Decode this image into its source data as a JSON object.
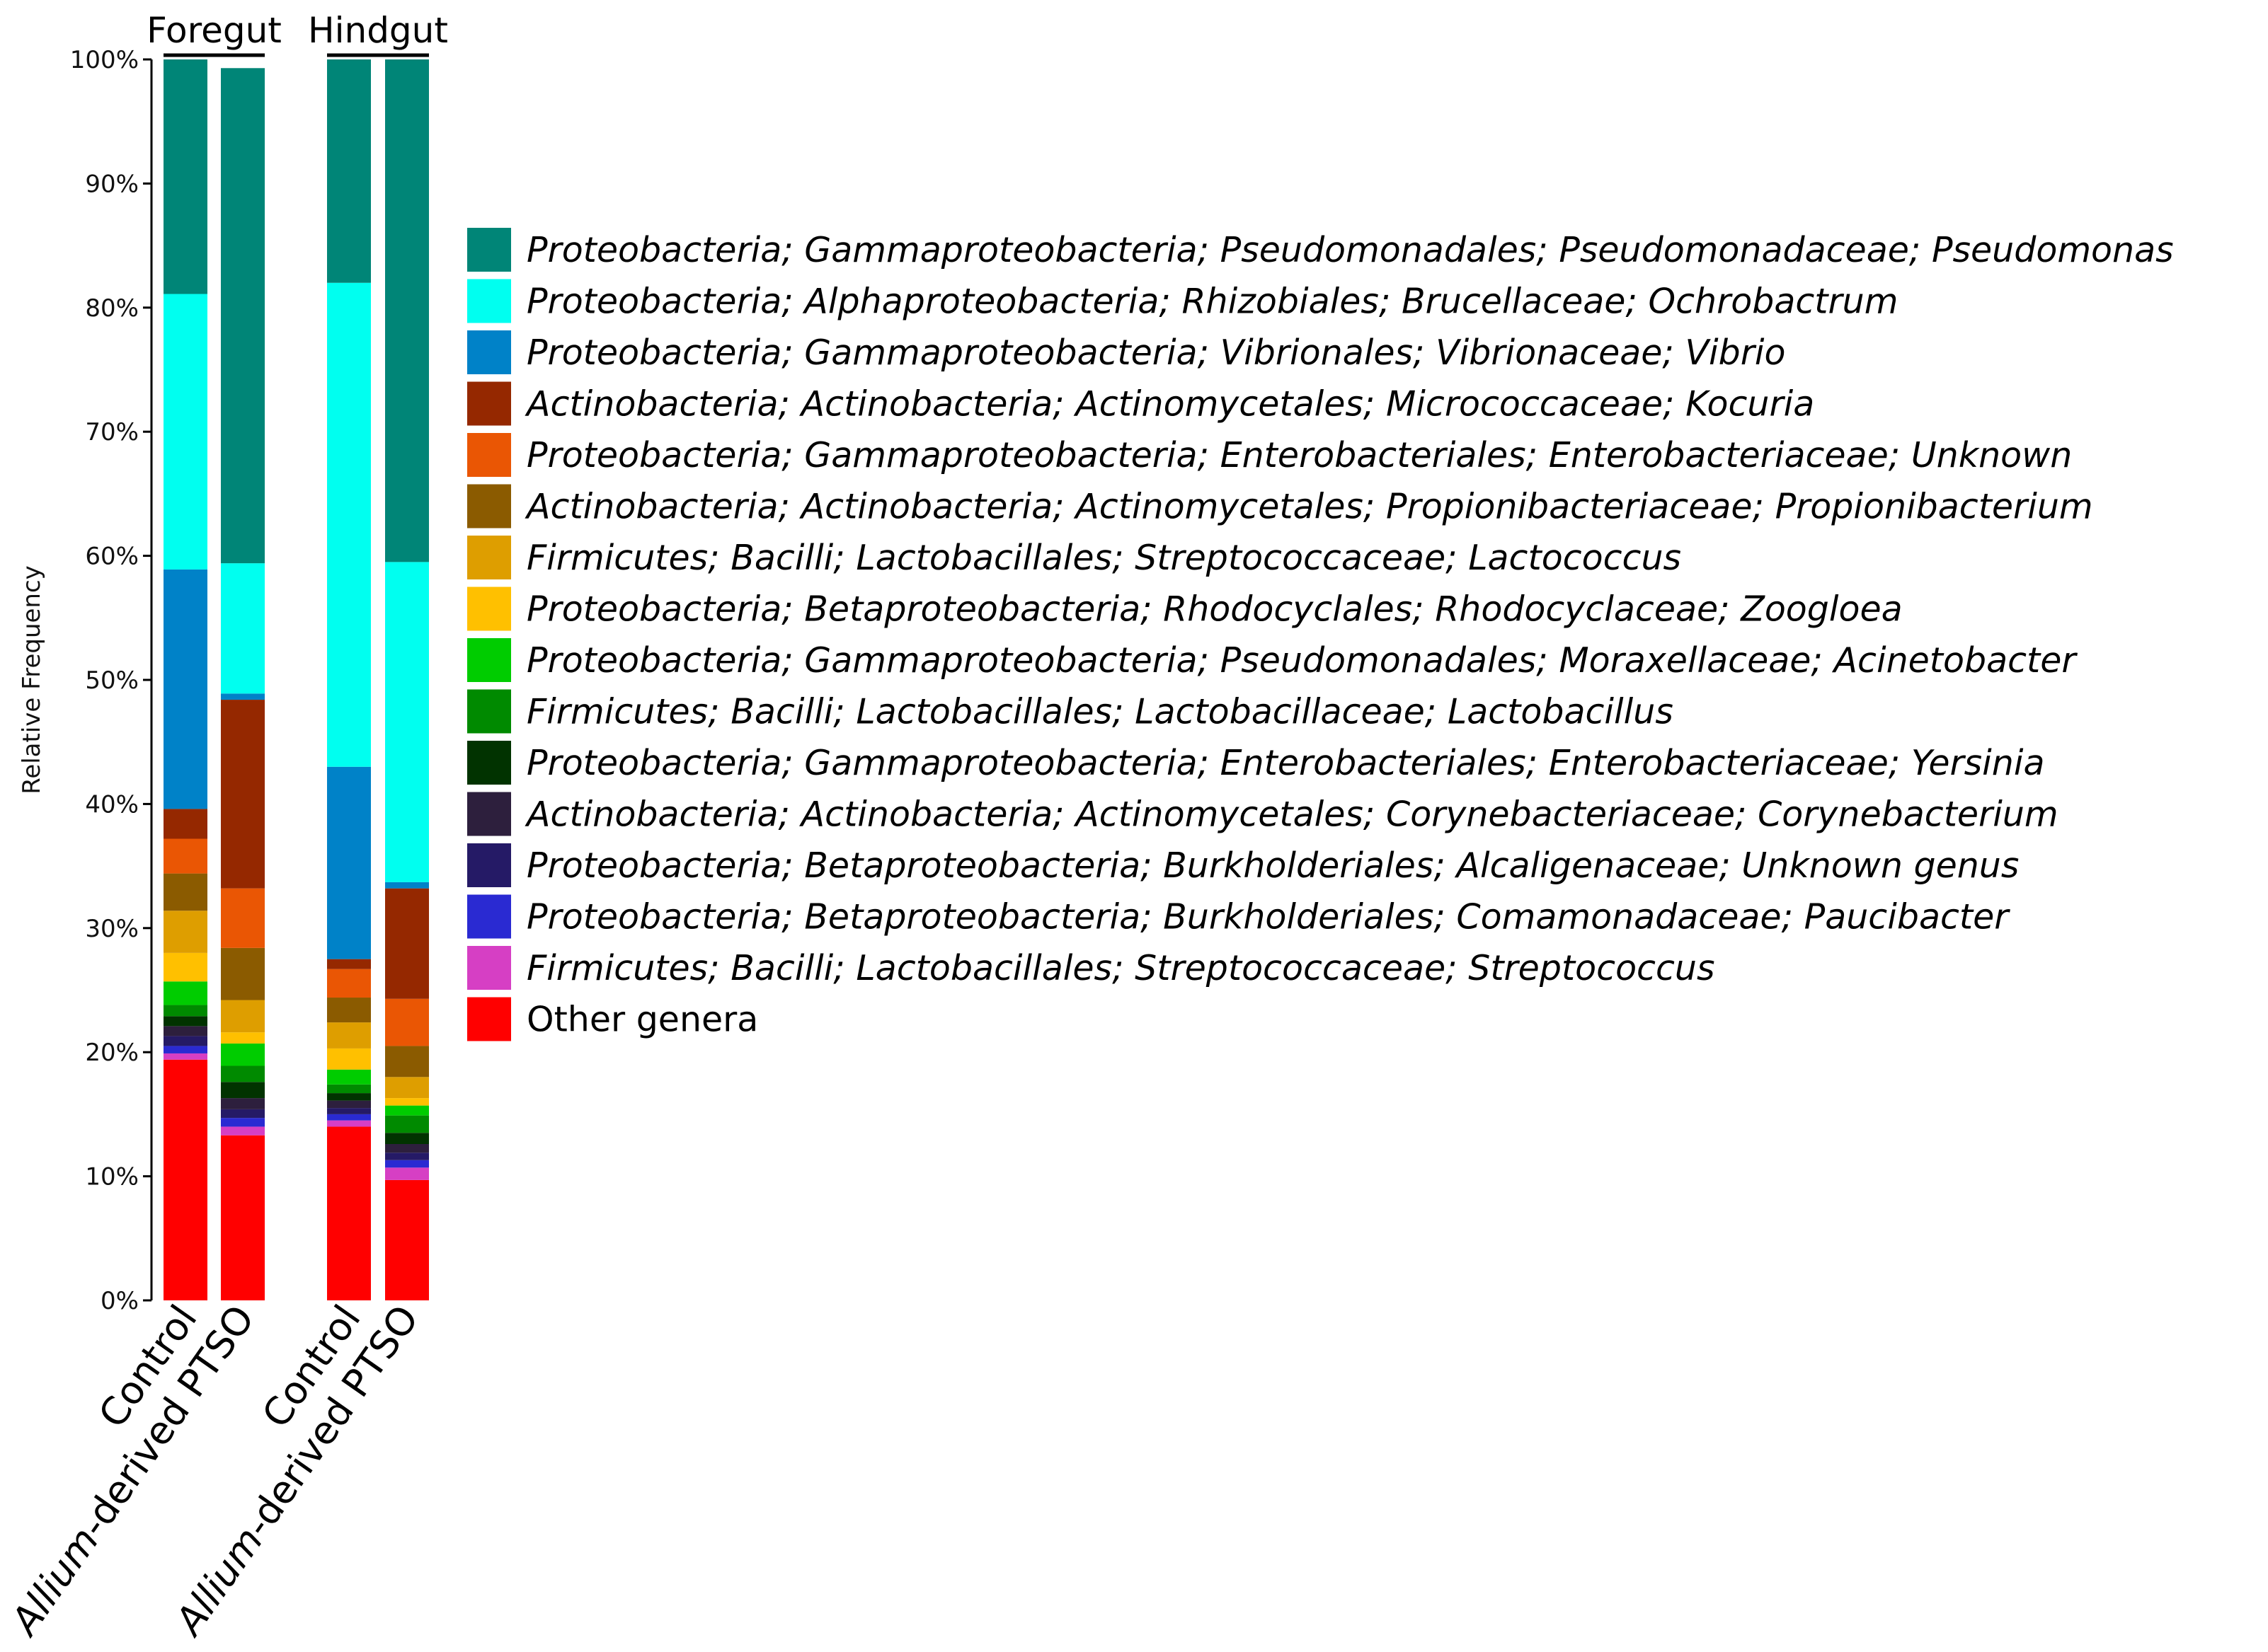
{
  "chart_data": {
    "type": "bar",
    "stacked": true,
    "ylabel": "Relative Frequency",
    "ylim": [
      0,
      100
    ],
    "yticks": [
      "0%",
      "10%",
      "20%",
      "30%",
      "40%",
      "50%",
      "60%",
      "70%",
      "80%",
      "90%",
      "100%"
    ],
    "groups": [
      {
        "name": "Foregut",
        "categories": [
          "Control",
          "Allium-derived PTSO"
        ]
      },
      {
        "name": "Hindgut",
        "categories": [
          "Control",
          "Allium-derived PTSO"
        ]
      }
    ],
    "categories": [
      "Control",
      "Allium-derived PTSO",
      "Control",
      "Allium-derived PTSO"
    ],
    "category_labels": [
      {
        "italic": "",
        "plain": "Control"
      },
      {
        "italic": "Allium",
        "plain": "-derived PTSO"
      },
      {
        "italic": "",
        "plain": "Control"
      },
      {
        "italic": "Allium",
        "plain": "-derived PTSO"
      }
    ],
    "series": [
      {
        "name": "Other genera",
        "color": "#FF0000",
        "italic": false,
        "values": [
          19.4,
          13.3,
          14.0,
          9.7
        ]
      },
      {
        "name": "Firmicutes; Bacilli; Lactobacillales; Streptococcaceae; Streptococcus",
        "color": "#D63FC4",
        "italic": true,
        "values": [
          0.5,
          0.7,
          0.5,
          1.0
        ]
      },
      {
        "name": "Proteobacteria; Betaproteobacteria; Burkholderiales; Comamonadaceae; Paucibacter",
        "color": "#2A2AD2",
        "italic": true,
        "values": [
          0.6,
          0.7,
          0.5,
          0.6
        ]
      },
      {
        "name": "Proteobacteria; Betaproteobacteria; Burkholderiales; Alcaligenaceae; Unknown genus",
        "color": "#251A66",
        "italic": true,
        "values": [
          0.8,
          0.7,
          0.5,
          0.6
        ]
      },
      {
        "name": "Actinobacteria; Actinobacteria; Actinomycetales; Corynebacteriaceae; Corynebacterium",
        "color": "#2D1F3D",
        "italic": true,
        "values": [
          0.8,
          0.9,
          0.6,
          0.7
        ]
      },
      {
        "name": "Proteobacteria; Gammaproteobacteria; Enterobacteriales; Enterobacteriaceae; Yersinia",
        "color": "#013300",
        "italic": true,
        "values": [
          0.8,
          1.3,
          0.6,
          0.9
        ]
      },
      {
        "name": "Firmicutes; Bacilli; Lactobacillales; Lactobacillaceae; Lactobacillus",
        "color": "#008A00",
        "italic": true,
        "values": [
          0.9,
          1.3,
          0.7,
          1.4
        ]
      },
      {
        "name": "Proteobacteria; Gammaproteobacteria; Pseudomonadales; Moraxellaceae; Acinetobacter",
        "color": "#00CC00",
        "italic": true,
        "values": [
          1.9,
          1.8,
          1.2,
          0.8
        ]
      },
      {
        "name": "Proteobacteria; Betaproteobacteria; Rhodocyclales; Rhodocyclaceae; Zoogloea",
        "color": "#FFC000",
        "italic": true,
        "values": [
          2.3,
          0.9,
          1.7,
          0.6
        ]
      },
      {
        "name": "Firmicutes; Bacilli; Lactobacillales; Streptococcaceae; Lactococcus",
        "color": "#DE9E00",
        "italic": true,
        "values": [
          3.4,
          2.6,
          2.1,
          1.7
        ]
      },
      {
        "name": "Actinobacteria; Actinobacteria; Actinomycetales; Propionibacteriaceae; Propionibacterium",
        "color": "#8B5B00",
        "italic": true,
        "values": [
          3.0,
          4.2,
          2.0,
          2.5
        ]
      },
      {
        "name": "Proteobacteria; Gammaproteobacteria; Enterobacteriales; Enterobacteriaceae; Unknown",
        "color": "#EA5604",
        "italic": true,
        "values": [
          2.8,
          4.8,
          2.3,
          3.8
        ]
      },
      {
        "name": "Actinobacteria; Actinobacteria; Actinomycetales; Micrococcaceae; Kocuria",
        "color": "#952800",
        "italic": true,
        "values": [
          2.4,
          15.2,
          0.8,
          8.9
        ]
      },
      {
        "name": "Proteobacteria; Gammaproteobacteria; Vibrionales; Vibrionaceae; Vibrio",
        "color": "#0082C8",
        "italic": true,
        "values": [
          19.3,
          0.5,
          15.5,
          0.5
        ]
      },
      {
        "name": "Proteobacteria; Alphaproteobacteria; Rhizobiales; Brucellaceae; Ochrobactrum",
        "color": "#00FFF0",
        "italic": true,
        "values": [
          22.2,
          10.5,
          39.0,
          25.8
        ]
      },
      {
        "name": "Proteobacteria; Gammaproteobacteria; Pseudomonadales; Pseudomonadaceae; Pseudomonas",
        "color": "#008577",
        "italic": true,
        "values": [
          18.9,
          39.9,
          18.0,
          40.5
        ]
      }
    ],
    "legend_order": [
      15,
      14,
      13,
      12,
      11,
      10,
      9,
      8,
      7,
      6,
      5,
      4,
      3,
      2,
      1,
      0
    ],
    "legend": "right",
    "grid": false
  }
}
